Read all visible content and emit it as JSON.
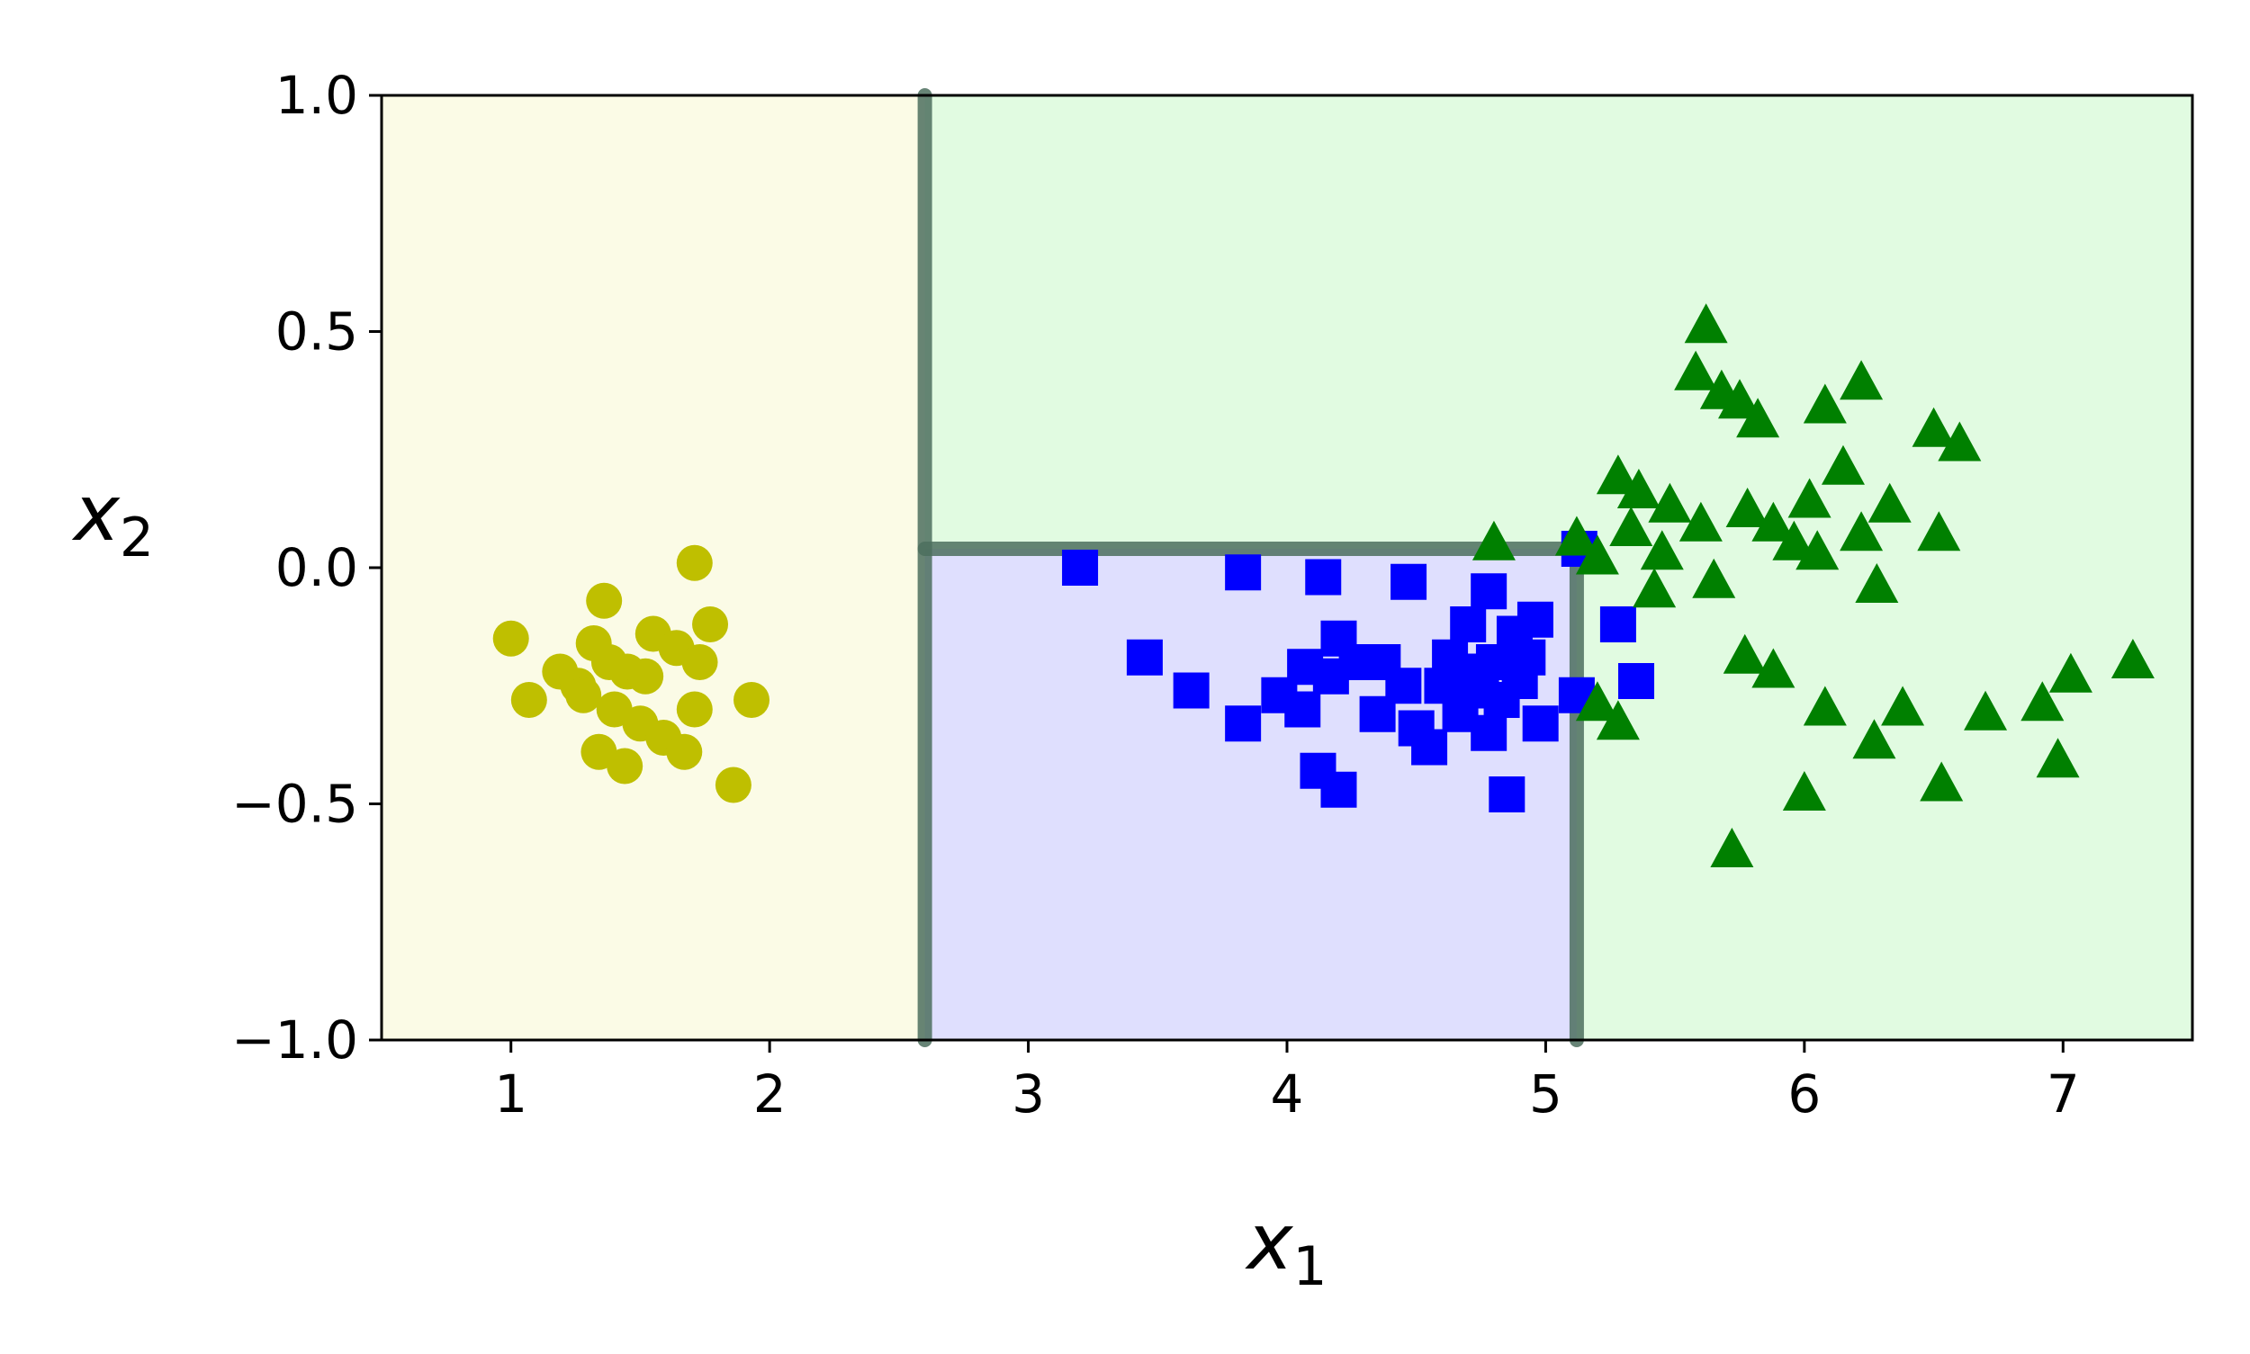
{
  "chart_data": {
    "type": "scatter",
    "title": "",
    "xlabel": "x",
    "xlabel_sub": "1",
    "ylabel": "x",
    "ylabel_sub": "2",
    "xlim": [
      0.5,
      7.5
    ],
    "ylim": [
      -1.0,
      1.0
    ],
    "grid": false,
    "legend": "none",
    "x_ticks": [
      1,
      2,
      3,
      4,
      5,
      6,
      7
    ],
    "x_tick_labels": [
      "1",
      "2",
      "3",
      "4",
      "5",
      "6",
      "7"
    ],
    "y_ticks": [
      -1.0,
      -0.5,
      0.0,
      0.5,
      1.0
    ],
    "y_tick_labels": [
      "−1.0",
      "−0.5",
      "0.0",
      "0.5",
      "1.0"
    ],
    "decision_regions": [
      {
        "x": [
          0.5,
          2.6
        ],
        "y": [
          -1.0,
          1.0
        ],
        "color": "#fbfbe6"
      },
      {
        "x": [
          2.6,
          5.12
        ],
        "y": [
          -1.0,
          0.04
        ],
        "color": "#dfdffe"
      },
      {
        "x": [
          2.6,
          7.5
        ],
        "y": [
          0.04,
          1.0
        ],
        "color": "#e1fbe1"
      },
      {
        "x": [
          5.12,
          7.5
        ],
        "y": [
          -1.0,
          0.04
        ],
        "color": "#e1fbe1"
      }
    ],
    "decision_boundaries": [
      {
        "x": [
          2.6,
          2.6
        ],
        "y": [
          -1.0,
          1.0
        ]
      },
      {
        "x": [
          2.6,
          5.12
        ],
        "y": [
          0.04,
          0.04
        ]
      },
      {
        "x": [
          5.12,
          5.12
        ],
        "y": [
          -1.0,
          0.04
        ]
      }
    ],
    "series": [
      {
        "marker": "circle",
        "color": "#bfbf00",
        "points": [
          [
            1.0,
            -0.15
          ],
          [
            1.07,
            -0.28
          ],
          [
            1.19,
            -0.22
          ],
          [
            1.26,
            -0.25
          ],
          [
            1.32,
            -0.16
          ],
          [
            1.36,
            -0.07
          ],
          [
            1.38,
            -0.2
          ],
          [
            1.4,
            -0.3
          ],
          [
            1.45,
            -0.22
          ],
          [
            1.5,
            -0.33
          ],
          [
            1.52,
            -0.23
          ],
          [
            1.55,
            -0.14
          ],
          [
            1.59,
            -0.36
          ],
          [
            1.64,
            -0.17
          ],
          [
            1.71,
            -0.3
          ],
          [
            1.73,
            -0.2
          ],
          [
            1.77,
            -0.12
          ],
          [
            1.34,
            -0.39
          ],
          [
            1.44,
            -0.42
          ],
          [
            1.67,
            -0.39
          ],
          [
            1.71,
            0.01
          ],
          [
            1.86,
            -0.46
          ],
          [
            1.93,
            -0.28
          ],
          [
            1.28,
            -0.27
          ]
        ]
      },
      {
        "marker": "square",
        "color": "#0000ff",
        "points": [
          [
            3.2,
            0.0
          ],
          [
            3.45,
            -0.19
          ],
          [
            3.63,
            -0.26
          ],
          [
            3.83,
            -0.33
          ],
          [
            3.83,
            -0.01
          ],
          [
            3.97,
            -0.27
          ],
          [
            4.06,
            -0.3
          ],
          [
            4.07,
            -0.21
          ],
          [
            4.12,
            -0.43
          ],
          [
            4.14,
            -0.02
          ],
          [
            4.17,
            -0.23
          ],
          [
            4.2,
            -0.15
          ],
          [
            4.2,
            -0.47
          ],
          [
            4.27,
            -0.2
          ],
          [
            4.35,
            -0.31
          ],
          [
            4.37,
            -0.2
          ],
          [
            4.45,
            -0.25
          ],
          [
            4.47,
            -0.03
          ],
          [
            4.5,
            -0.34
          ],
          [
            4.55,
            -0.38
          ],
          [
            4.6,
            -0.25
          ],
          [
            4.63,
            -0.19
          ],
          [
            4.67,
            -0.31
          ],
          [
            4.7,
            -0.12
          ],
          [
            4.72,
            -0.26
          ],
          [
            4.75,
            -0.22
          ],
          [
            4.78,
            -0.05
          ],
          [
            4.78,
            -0.35
          ],
          [
            4.8,
            -0.2
          ],
          [
            4.83,
            -0.28
          ],
          [
            4.85,
            -0.48
          ],
          [
            4.88,
            -0.14
          ],
          [
            4.9,
            -0.24
          ],
          [
            4.93,
            -0.19
          ],
          [
            4.96,
            -0.11
          ],
          [
            4.98,
            -0.33
          ],
          [
            5.12,
            -0.27
          ],
          [
            5.13,
            0.04
          ],
          [
            5.28,
            -0.12
          ],
          [
            5.35,
            -0.24
          ]
        ]
      },
      {
        "marker": "triangle",
        "color": "#008000",
        "points": [
          [
            4.8,
            0.05
          ],
          [
            5.12,
            0.06
          ],
          [
            5.2,
            0.02
          ],
          [
            5.2,
            -0.29
          ],
          [
            5.28,
            -0.33
          ],
          [
            5.28,
            0.19
          ],
          [
            5.33,
            0.08
          ],
          [
            5.36,
            0.16
          ],
          [
            5.42,
            -0.05
          ],
          [
            5.45,
            0.03
          ],
          [
            5.48,
            0.13
          ],
          [
            5.58,
            0.41
          ],
          [
            5.6,
            0.09
          ],
          [
            5.62,
            0.51
          ],
          [
            5.65,
            -0.03
          ],
          [
            5.68,
            0.37
          ],
          [
            5.72,
            -0.6
          ],
          [
            5.75,
            0.35
          ],
          [
            5.77,
            -0.19
          ],
          [
            5.78,
            0.12
          ],
          [
            5.82,
            0.31
          ],
          [
            5.88,
            -0.22
          ],
          [
            5.88,
            0.09
          ],
          [
            5.96,
            0.05
          ],
          [
            6.0,
            -0.48
          ],
          [
            6.02,
            0.14
          ],
          [
            6.05,
            0.03
          ],
          [
            6.08,
            -0.3
          ],
          [
            6.08,
            0.34
          ],
          [
            6.15,
            0.21
          ],
          [
            6.22,
            0.07
          ],
          [
            6.22,
            0.39
          ],
          [
            6.27,
            -0.37
          ],
          [
            6.28,
            -0.04
          ],
          [
            6.33,
            0.13
          ],
          [
            6.38,
            -0.3
          ],
          [
            6.5,
            0.29
          ],
          [
            6.52,
            0.07
          ],
          [
            6.53,
            -0.46
          ],
          [
            6.6,
            0.26
          ],
          [
            6.7,
            -0.31
          ],
          [
            6.92,
            -0.29
          ],
          [
            6.98,
            -0.41
          ],
          [
            7.03,
            -0.23
          ],
          [
            7.27,
            -0.2
          ]
        ]
      }
    ]
  }
}
